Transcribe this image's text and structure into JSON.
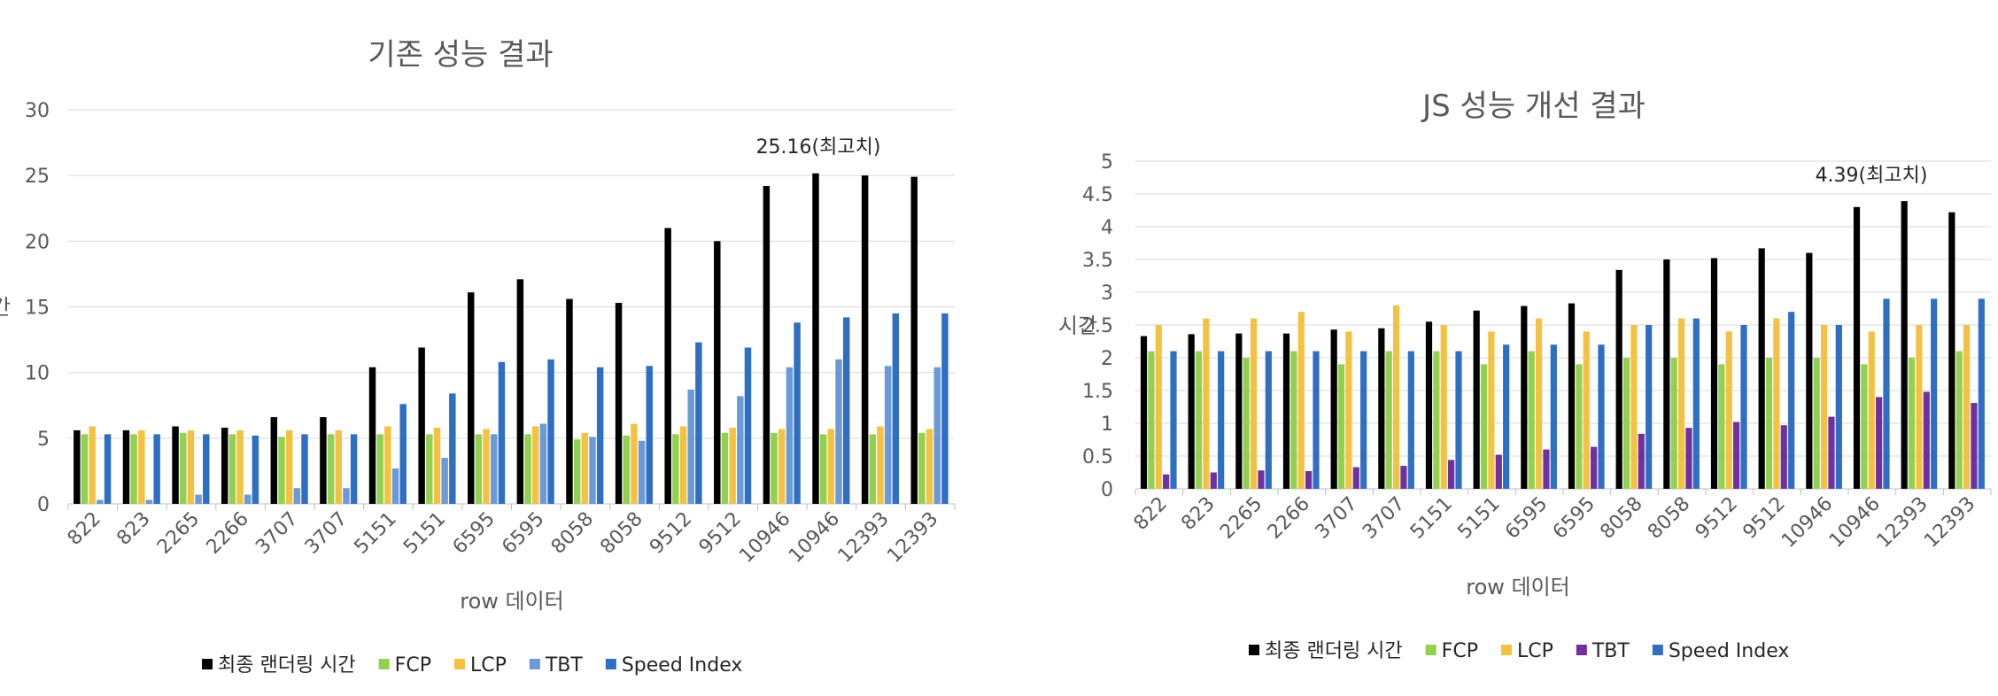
{
  "chart_data": [
    {
      "type": "bar",
      "title": "기존 성능 결과",
      "xlabel": "row 데이터",
      "ylabel": "시간",
      "ylim": [
        0,
        30
      ],
      "yticks": [
        0,
        5,
        10,
        15,
        20,
        25,
        30
      ],
      "grid": true,
      "legend_position": "bottom",
      "annotation": "25.16(최고치)",
      "categories": [
        "822",
        "823",
        "2265",
        "2266",
        "3707",
        "3707",
        "5151",
        "5151",
        "6595",
        "6595",
        "8058",
        "8058",
        "9512",
        "9512",
        "10946",
        "10946",
        "12393",
        "12393"
      ],
      "series": [
        {
          "name": "최종 랜더링 시간",
          "color": "#000000",
          "values": [
            5.6,
            5.6,
            5.9,
            5.8,
            6.6,
            6.6,
            10.4,
            11.9,
            16.1,
            17.1,
            15.6,
            15.3,
            21.0,
            20.0,
            24.2,
            25.16,
            25.0,
            24.9
          ]
        },
        {
          "name": "FCP",
          "color": "#92d050",
          "values": [
            5.3,
            5.3,
            5.4,
            5.3,
            5.1,
            5.3,
            5.3,
            5.3,
            5.3,
            5.3,
            4.9,
            5.2,
            5.3,
            5.4,
            5.4,
            5.3,
            5.3,
            5.4
          ]
        },
        {
          "name": "LCP",
          "color": "#f4c242",
          "values": [
            5.9,
            5.6,
            5.6,
            5.6,
            5.6,
            5.6,
            5.9,
            5.8,
            5.7,
            5.9,
            5.4,
            6.1,
            5.9,
            5.8,
            5.7,
            5.7,
            5.9,
            5.7
          ]
        },
        {
          "name": "TBT",
          "color": "#6a9bd8",
          "values": [
            0.3,
            0.3,
            0.7,
            0.7,
            1.2,
            1.2,
            2.7,
            3.5,
            5.3,
            6.1,
            5.1,
            4.8,
            8.7,
            8.2,
            10.4,
            11.0,
            10.5,
            10.4
          ]
        },
        {
          "name": "Speed Index",
          "color": "#2e6fc4",
          "values": [
            5.3,
            5.3,
            5.3,
            5.2,
            5.3,
            5.3,
            7.6,
            8.4,
            10.8,
            11.0,
            10.4,
            10.5,
            12.3,
            11.9,
            13.8,
            14.2,
            14.5,
            14.5
          ]
        }
      ]
    },
    {
      "type": "bar",
      "title": "JS 성능 개선 결과",
      "xlabel": "row 데이터",
      "ylabel": "시간",
      "ylim": [
        0,
        5
      ],
      "yticks": [
        0,
        0.5,
        1,
        1.5,
        2,
        2.5,
        3,
        3.5,
        4,
        4.5,
        5
      ],
      "grid": true,
      "legend_position": "bottom",
      "annotation": "4.39(최고치)",
      "categories": [
        "822",
        "823",
        "2265",
        "2266",
        "3707",
        "3707",
        "5151",
        "5151",
        "6595",
        "6595",
        "8058",
        "8058",
        "9512",
        "9512",
        "10946",
        "10946",
        "12393",
        "12393"
      ],
      "series": [
        {
          "name": "최종 랜더링 시간",
          "color": "#000000",
          "values": [
            2.33,
            2.36,
            2.37,
            2.37,
            2.43,
            2.45,
            2.55,
            2.72,
            2.79,
            2.83,
            3.34,
            3.5,
            3.52,
            3.67,
            3.6,
            4.3,
            4.39,
            4.22
          ]
        },
        {
          "name": "FCP",
          "color": "#92d050",
          "values": [
            2.1,
            2.1,
            2.0,
            2.1,
            1.9,
            2.1,
            2.1,
            1.9,
            2.1,
            1.9,
            2.0,
            2.0,
            1.9,
            2.0,
            2.0,
            1.9,
            2.0,
            2.1
          ]
        },
        {
          "name": "LCP",
          "color": "#f4c242",
          "values": [
            2.5,
            2.6,
            2.6,
            2.7,
            2.4,
            2.8,
            2.5,
            2.4,
            2.6,
            2.4,
            2.5,
            2.6,
            2.4,
            2.6,
            2.5,
            2.4,
            2.5,
            2.5
          ]
        },
        {
          "name": "TBT",
          "color": "#7030a0",
          "values": [
            0.22,
            0.25,
            0.28,
            0.27,
            0.33,
            0.35,
            0.44,
            0.52,
            0.6,
            0.64,
            0.84,
            0.93,
            1.02,
            0.97,
            1.1,
            1.4,
            1.48,
            1.31
          ]
        },
        {
          "name": "Speed Index",
          "color": "#2e6fc4",
          "values": [
            2.1,
            2.1,
            2.1,
            2.1,
            2.1,
            2.1,
            2.1,
            2.2,
            2.2,
            2.2,
            2.5,
            2.6,
            2.5,
            2.7,
            2.5,
            2.9,
            2.9,
            2.9
          ]
        }
      ]
    }
  ]
}
